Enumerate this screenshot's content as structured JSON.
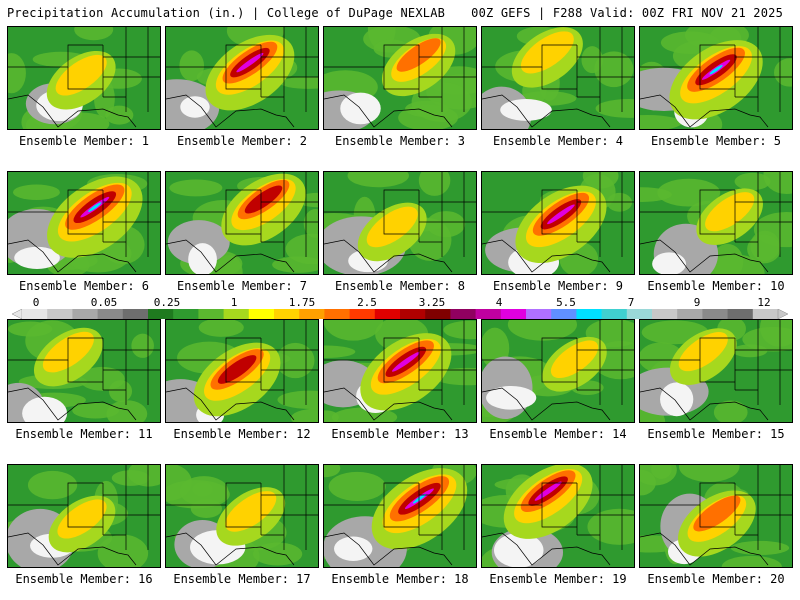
{
  "header": {
    "title_left": "Precipitation Accumulation (in.) | College of DuPage NEXLAB",
    "title_right": "00Z GEFS | F288 Valid: 00Z FRI NOV 21 2025"
  },
  "legend": {
    "ticks": [
      "0",
      "0.05",
      "0.25",
      "1",
      "1.75",
      "2.5",
      "3.25",
      "4",
      "5.5",
      "7",
      "9",
      "12"
    ],
    "colors": [
      "#e6e6e6",
      "#c8c8c8",
      "#a8a8a8",
      "#8a8a8a",
      "#6e6e6e",
      "#1f7a1f",
      "#2f9a2f",
      "#5bb82f",
      "#a6d81e",
      "#ffff00",
      "#ffd200",
      "#ffa000",
      "#ff7000",
      "#ff3a00",
      "#e00000",
      "#b00000",
      "#800000",
      "#900060",
      "#c000a0",
      "#e000e0",
      "#b070ff",
      "#6090ff",
      "#00e0ff",
      "#40d0d0",
      "#9ad8d8",
      "#c8c8c8",
      "#a8a8a8",
      "#8a8a8a",
      "#6e6e6e",
      "#c8c8c8"
    ]
  },
  "members": [
    {
      "label": "Ensemble Member: 1",
      "intensity": 0.35
    },
    {
      "label": "Ensemble Member: 2",
      "intensity": 0.8
    },
    {
      "label": "Ensemble Member: 3",
      "intensity": 0.45
    },
    {
      "label": "Ensemble Member: 4",
      "intensity": 0.4
    },
    {
      "label": "Ensemble Member: 5",
      "intensity": 0.9
    },
    {
      "label": "Ensemble Member: 6",
      "intensity": 0.95
    },
    {
      "label": "Ensemble Member: 7",
      "intensity": 0.7
    },
    {
      "label": "Ensemble Member: 8",
      "intensity": 0.35
    },
    {
      "label": "Ensemble Member: 9",
      "intensity": 0.85
    },
    {
      "label": "Ensemble Member: 10",
      "intensity": 0.3
    },
    {
      "label": "Ensemble Member: 11",
      "intensity": 0.35
    },
    {
      "label": "Ensemble Member: 12",
      "intensity": 0.75
    },
    {
      "label": "Ensemble Member: 13",
      "intensity": 0.85
    },
    {
      "label": "Ensemble Member: 14",
      "intensity": 0.25
    },
    {
      "label": "Ensemble Member: 15",
      "intensity": 0.3
    },
    {
      "label": "Ensemble Member: 16",
      "intensity": 0.3
    },
    {
      "label": "Ensemble Member: 17",
      "intensity": 0.35
    },
    {
      "label": "Ensemble Member: 18",
      "intensity": 0.95
    },
    {
      "label": "Ensemble Member: 19",
      "intensity": 0.8
    },
    {
      "label": "Ensemble Member: 20",
      "intensity": 0.55
    }
  ]
}
